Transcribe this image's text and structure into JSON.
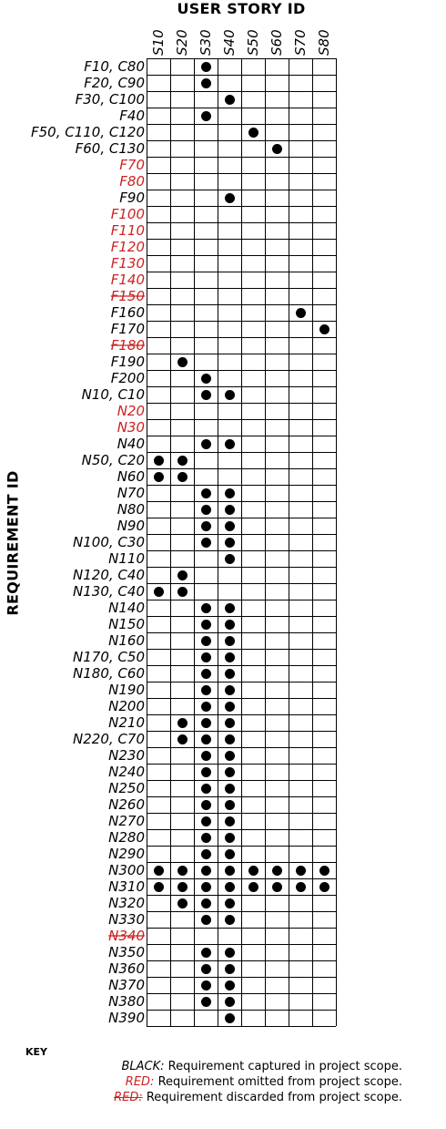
{
  "titles": {
    "x_axis": "USER STORY ID",
    "y_axis": "REQUIREMENT ID"
  },
  "colors": {
    "captured": "#000000",
    "omitted": "#cc2222",
    "discarded": "#cc2222"
  },
  "columns": [
    "S10",
    "S20",
    "S30",
    "S40",
    "S50",
    "S60",
    "S70",
    "S80"
  ],
  "rows": [
    {
      "label": "F10, C80",
      "status": "captured",
      "stories": [
        "S30"
      ]
    },
    {
      "label": "F20, C90",
      "status": "captured",
      "stories": [
        "S30"
      ]
    },
    {
      "label": "F30, C100",
      "status": "captured",
      "stories": [
        "S40"
      ]
    },
    {
      "label": "F40",
      "status": "captured",
      "stories": [
        "S30"
      ]
    },
    {
      "label": "F50, C110, C120",
      "status": "captured",
      "stories": [
        "S50"
      ]
    },
    {
      "label": "F60, C130",
      "status": "captured",
      "stories": [
        "S60"
      ]
    },
    {
      "label": "F70",
      "status": "omitted",
      "stories": []
    },
    {
      "label": "F80",
      "status": "omitted",
      "stories": []
    },
    {
      "label": "F90",
      "status": "captured",
      "stories": [
        "S40"
      ]
    },
    {
      "label": "F100",
      "status": "omitted",
      "stories": []
    },
    {
      "label": "F110",
      "status": "omitted",
      "stories": []
    },
    {
      "label": "F120",
      "status": "omitted",
      "stories": []
    },
    {
      "label": "F130",
      "status": "omitted",
      "stories": []
    },
    {
      "label": "F140",
      "status": "omitted",
      "stories": []
    },
    {
      "label": "F150",
      "status": "discarded",
      "stories": []
    },
    {
      "label": "F160",
      "status": "captured",
      "stories": [
        "S70"
      ]
    },
    {
      "label": "F170",
      "status": "captured",
      "stories": [
        "S80"
      ]
    },
    {
      "label": "F180",
      "status": "discarded",
      "stories": []
    },
    {
      "label": "F190",
      "status": "captured",
      "stories": [
        "S20"
      ]
    },
    {
      "label": "F200",
      "status": "captured",
      "stories": [
        "S30"
      ]
    },
    {
      "label": "N10, C10",
      "status": "captured",
      "stories": [
        "S30",
        "S40"
      ]
    },
    {
      "label": "N20",
      "status": "omitted",
      "stories": []
    },
    {
      "label": "N30",
      "status": "omitted",
      "stories": []
    },
    {
      "label": "N40",
      "status": "captured",
      "stories": [
        "S30",
        "S40"
      ]
    },
    {
      "label": "N50, C20",
      "status": "captured",
      "stories": [
        "S10",
        "S20"
      ]
    },
    {
      "label": "N60",
      "status": "captured",
      "stories": [
        "S10",
        "S20"
      ]
    },
    {
      "label": "N70",
      "status": "captured",
      "stories": [
        "S30",
        "S40"
      ]
    },
    {
      "label": "N80",
      "status": "captured",
      "stories": [
        "S30",
        "S40"
      ]
    },
    {
      "label": "N90",
      "status": "captured",
      "stories": [
        "S30",
        "S40"
      ]
    },
    {
      "label": "N100, C30",
      "status": "captured",
      "stories": [
        "S30",
        "S40"
      ]
    },
    {
      "label": "N110",
      "status": "captured",
      "stories": [
        "S40"
      ]
    },
    {
      "label": "N120, C40",
      "status": "captured",
      "stories": [
        "S20"
      ]
    },
    {
      "label": "N130, C40",
      "status": "captured",
      "stories": [
        "S10",
        "S20"
      ]
    },
    {
      "label": "N140",
      "status": "captured",
      "stories": [
        "S30",
        "S40"
      ]
    },
    {
      "label": "N150",
      "status": "captured",
      "stories": [
        "S30",
        "S40"
      ]
    },
    {
      "label": "N160",
      "status": "captured",
      "stories": [
        "S30",
        "S40"
      ]
    },
    {
      "label": "N170, C50",
      "status": "captured",
      "stories": [
        "S30",
        "S40"
      ]
    },
    {
      "label": "N180, C60",
      "status": "captured",
      "stories": [
        "S30",
        "S40"
      ]
    },
    {
      "label": "N190",
      "status": "captured",
      "stories": [
        "S30",
        "S40"
      ]
    },
    {
      "label": "N200",
      "status": "captured",
      "stories": [
        "S30",
        "S40"
      ]
    },
    {
      "label": "N210",
      "status": "captured",
      "stories": [
        "S20",
        "S30",
        "S40"
      ]
    },
    {
      "label": "N220, C70",
      "status": "captured",
      "stories": [
        "S20",
        "S30",
        "S40"
      ]
    },
    {
      "label": "N230",
      "status": "captured",
      "stories": [
        "S30",
        "S40"
      ]
    },
    {
      "label": "N240",
      "status": "captured",
      "stories": [
        "S30",
        "S40"
      ]
    },
    {
      "label": "N250",
      "status": "captured",
      "stories": [
        "S30",
        "S40"
      ]
    },
    {
      "label": "N260",
      "status": "captured",
      "stories": [
        "S30",
        "S40"
      ]
    },
    {
      "label": "N270",
      "status": "captured",
      "stories": [
        "S30",
        "S40"
      ]
    },
    {
      "label": "N280",
      "status": "captured",
      "stories": [
        "S30",
        "S40"
      ]
    },
    {
      "label": "N290",
      "status": "captured",
      "stories": [
        "S30",
        "S40"
      ]
    },
    {
      "label": "N300",
      "status": "captured",
      "stories": [
        "S10",
        "S20",
        "S30",
        "S40",
        "S50",
        "S60",
        "S70",
        "S80"
      ]
    },
    {
      "label": "N310",
      "status": "captured",
      "stories": [
        "S10",
        "S20",
        "S30",
        "S40",
        "S50",
        "S60",
        "S70",
        "S80"
      ]
    },
    {
      "label": "N320",
      "status": "captured",
      "stories": [
        "S20",
        "S30",
        "S40"
      ]
    },
    {
      "label": "N330",
      "status": "captured",
      "stories": [
        "S30",
        "S40"
      ]
    },
    {
      "label": "N340",
      "status": "discarded",
      "stories": []
    },
    {
      "label": "N350",
      "status": "captured",
      "stories": [
        "S30",
        "S40"
      ]
    },
    {
      "label": "N360",
      "status": "captured",
      "stories": [
        "S30",
        "S40"
      ]
    },
    {
      "label": "N370",
      "status": "captured",
      "stories": [
        "S30",
        "S40"
      ]
    },
    {
      "label": "N380",
      "status": "captured",
      "stories": [
        "S30",
        "S40"
      ]
    },
    {
      "label": "N390",
      "status": "captured",
      "stories": [
        "S40"
      ]
    }
  ],
  "key": {
    "title": "KEY",
    "items": [
      {
        "term": "BLACK:",
        "text": "Requirement captured in project scope."
      },
      {
        "term": "RED:",
        "text": "Requirement omitted from project scope."
      },
      {
        "term": "RED:",
        "text": "Requirement discarded from project scope."
      }
    ]
  }
}
